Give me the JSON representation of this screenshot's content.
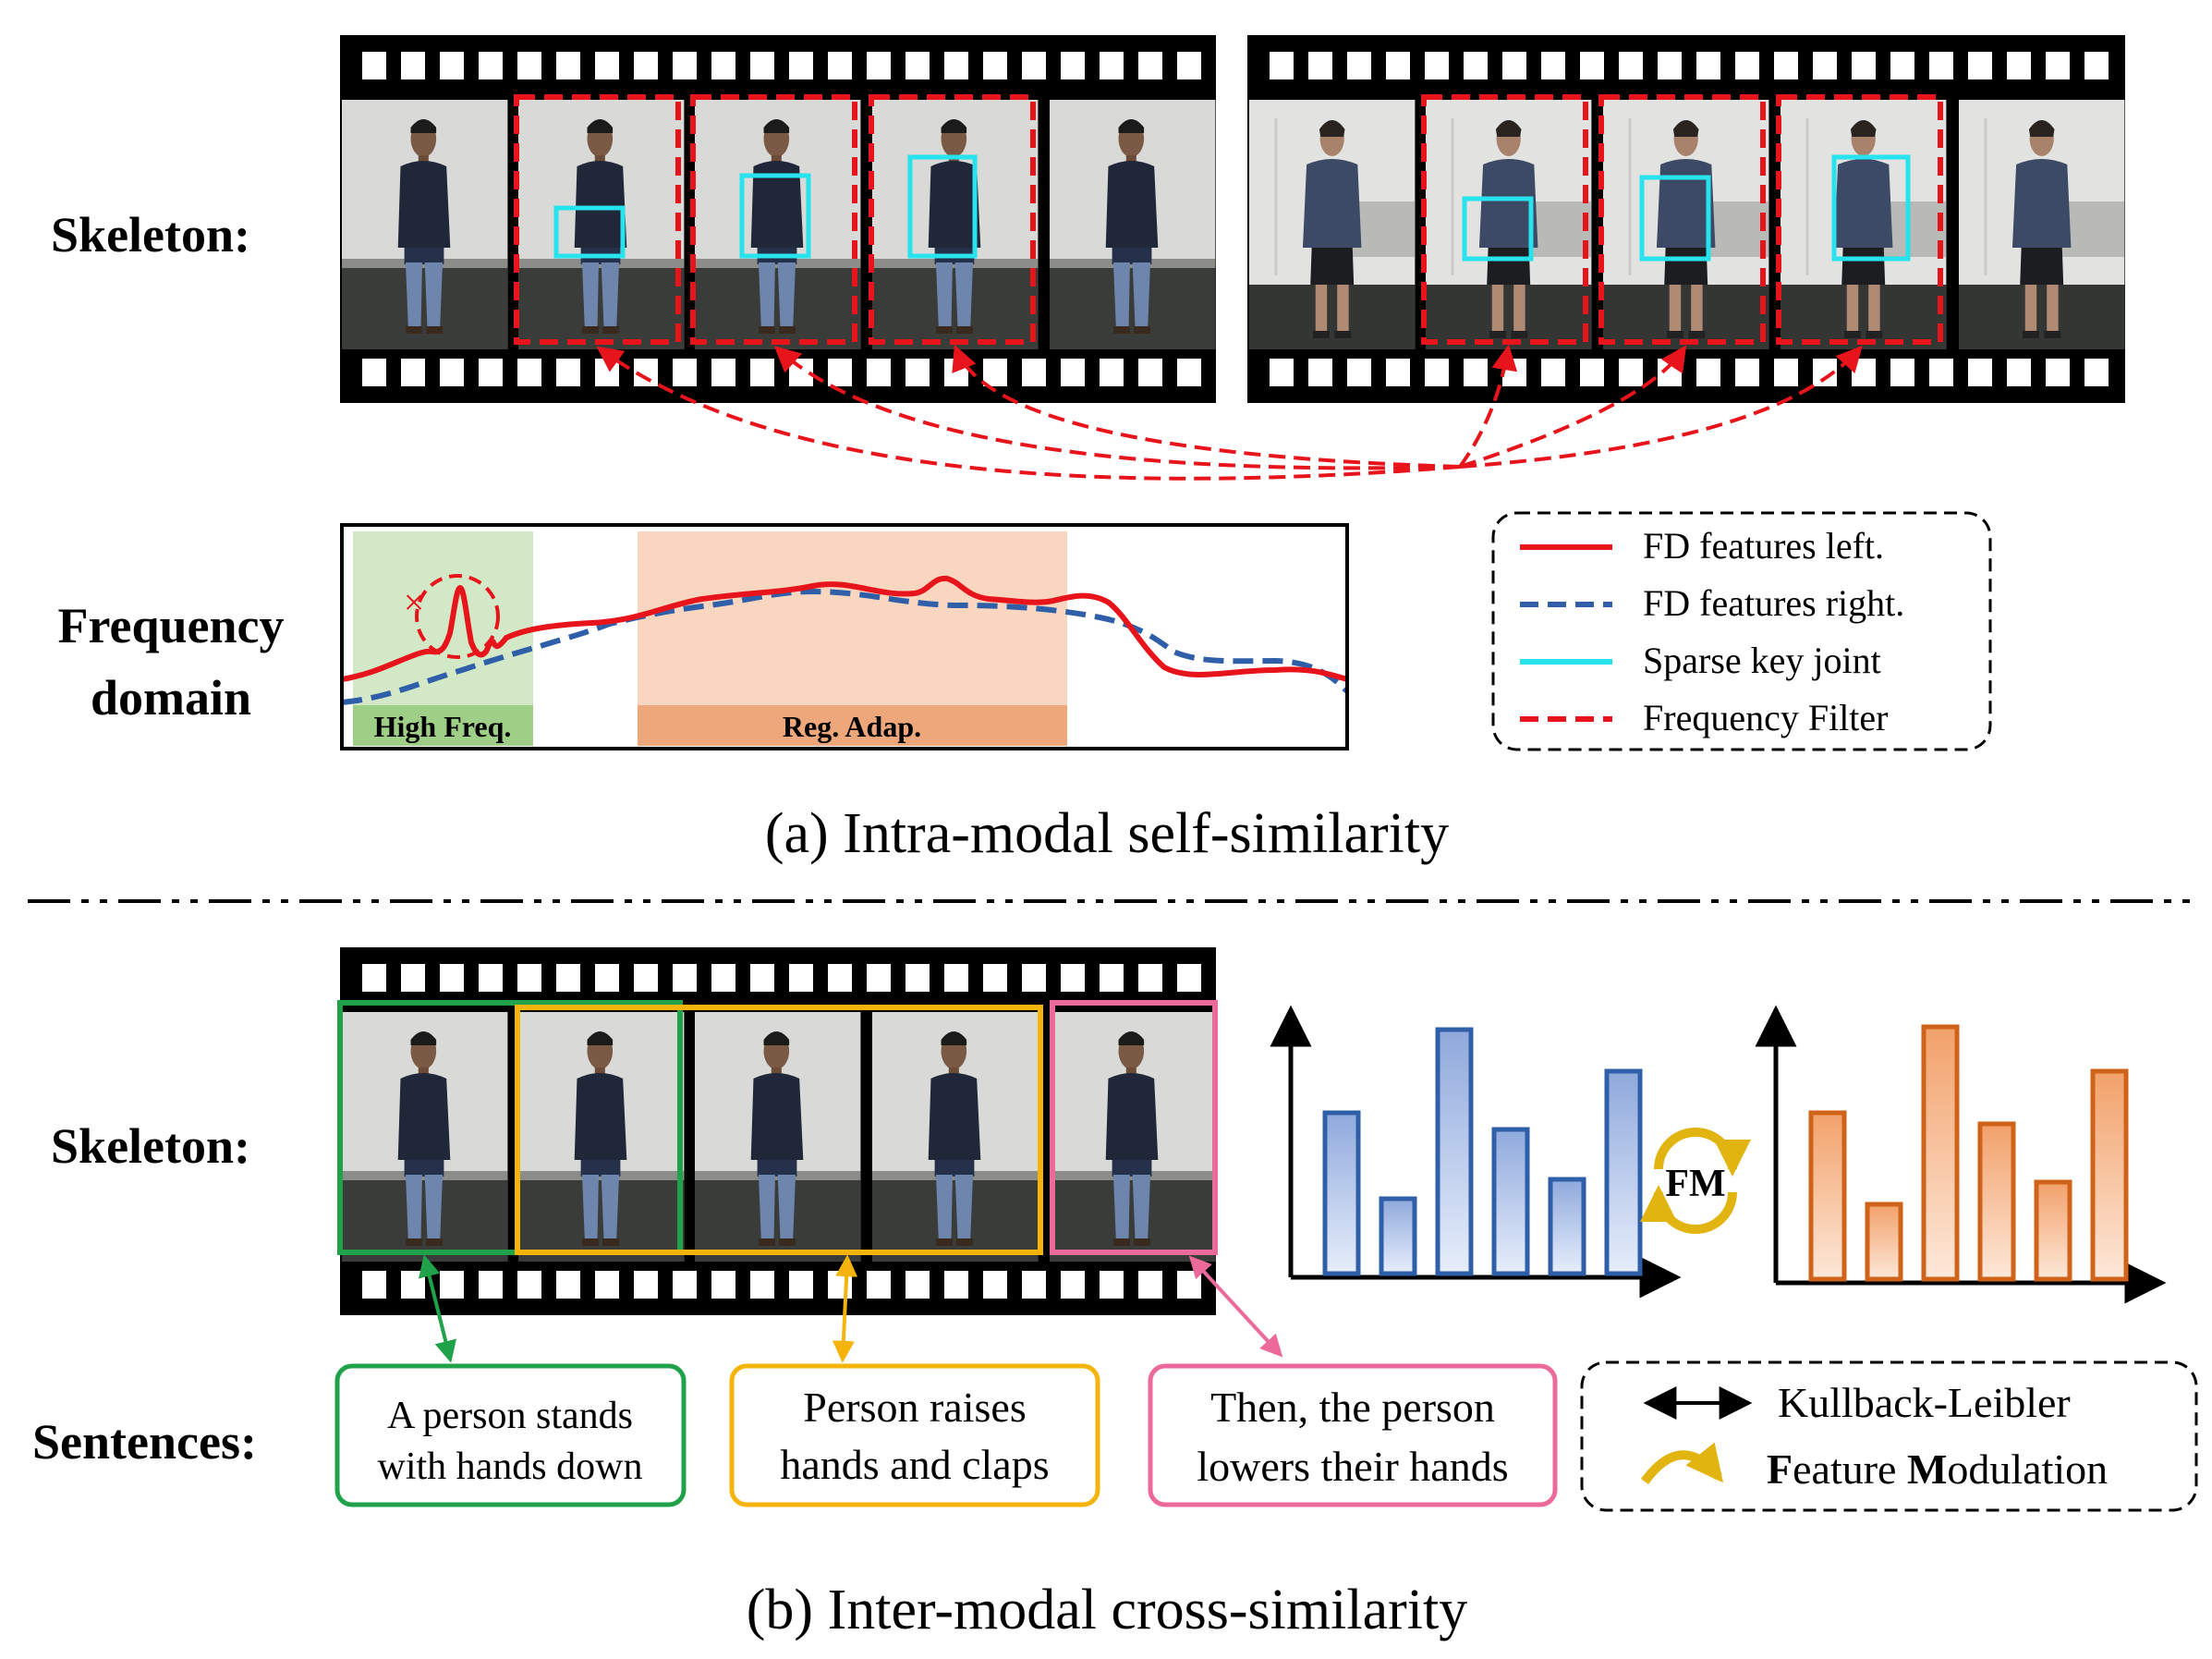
{
  "section_a": {
    "row_label": "Skeleton:",
    "freq_label_line1": "Frequency",
    "freq_label_line2": "domain",
    "band_high": "High Freq.",
    "band_reg": "Reg. Adap.",
    "cross_mark": "×",
    "legend": [
      {
        "label": "FD features left.",
        "color": "#e8141b",
        "style": "solid"
      },
      {
        "label": "FD features right.",
        "color": "#2f5fa8",
        "style": "dashed"
      },
      {
        "label": "Sparse key joint",
        "color": "#27e3ee",
        "style": "solid"
      },
      {
        "label": "Frequency Filter",
        "color": "#e8141b",
        "style": "dashed"
      }
    ],
    "caption": "(a) Intra-modal self-similarity"
  },
  "section_b": {
    "row_label_skeleton": "Skeleton:",
    "row_label_sentences": "Sentences:",
    "sentences": [
      {
        "line1": "A person stands",
        "line2": "with hands down",
        "color": "#1fa24a"
      },
      {
        "line1": "Person raises",
        "line2": "hands and claps",
        "color": "#f5b40c"
      },
      {
        "line1": "Then, the person",
        "line2": "lowers their hands",
        "color": "#ec6a9a"
      }
    ],
    "chart_left": {
      "values": [
        0.58,
        0.27,
        0.88,
        0.52,
        0.34,
        0.73
      ],
      "color": "#2f5fa8",
      "fill": "#b9c9ea"
    },
    "chart_right": {
      "values": [
        0.6,
        0.27,
        0.91,
        0.56,
        0.35,
        0.75
      ],
      "color": "#d0631a",
      "fill": "#f7c9a6"
    },
    "fm_label": "FM",
    "legend_kl": "Kullback-Leibler",
    "legend_fm_bold1": "F",
    "legend_fm_rest1": "eature ",
    "legend_fm_bold2": "M",
    "legend_fm_rest2": "odulation",
    "caption": "(b) Inter-modal cross-similarity"
  },
  "colors": {
    "red": "#e8141b",
    "cyan": "#27e3ee",
    "high_freq_band": "#d3e8c6",
    "high_freq_label_bg": "#9fcf86",
    "reg_band": "#f8d6c0",
    "reg_label_bg": "#eda77a",
    "fm_arrow": "#e2b410"
  }
}
